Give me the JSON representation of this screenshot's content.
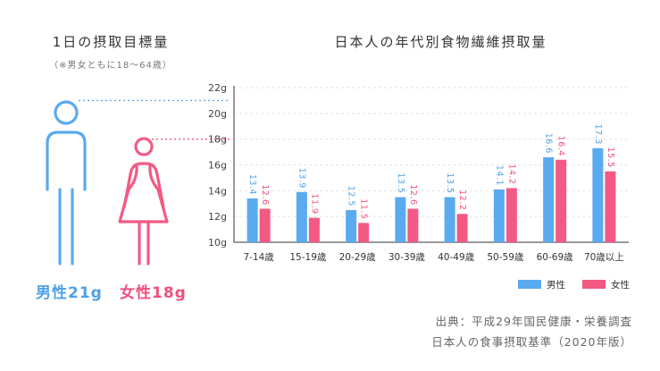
{
  "left_panel": {
    "title": "1日の摂取目標量",
    "subtitle": "（※男女ともに18〜64歳）",
    "male_label": "男性21g",
    "female_label": "女性18g"
  },
  "source": {
    "line1": "出典：平成29年国民健康・栄養調査",
    "line2": "日本人の食事摂取基準（2020年版）"
  },
  "colors": {
    "male": "#5aaaf0",
    "female": "#f25a84",
    "male_text": "#4ea1e6",
    "female_text": "#f0507e"
  },
  "chart_data": {
    "type": "bar",
    "title": "日本人の年代別食物繊維摂取量",
    "categories": [
      "7-14歳",
      "15-19歳",
      "20-29歳",
      "30-39歳",
      "40-49歳",
      "50-59歳",
      "60-69歳",
      "70歳以上"
    ],
    "series": [
      {
        "name": "男性",
        "values": [
          13.4,
          13.9,
          12.5,
          13.5,
          13.5,
          14.1,
          16.6,
          17.3
        ],
        "labels": [
          "13.4",
          "13.9",
          "12.5",
          "13.5",
          "13.5",
          "14.1",
          "16.6",
          "17.3"
        ]
      },
      {
        "name": "女性",
        "values": [
          12.6,
          11.9,
          11.5,
          12.6,
          12.2,
          14.2,
          16.4,
          15.5
        ],
        "labels": [
          "12.6",
          "11.9",
          "11.5",
          "12.6",
          "12.2",
          "14.2",
          "16.4",
          "15.5"
        ]
      }
    ],
    "ylim": [
      10,
      22
    ],
    "yticks": [
      "10g",
      "12g",
      "14g",
      "16g",
      "18g",
      "20g",
      "22g"
    ],
    "ytick_values": [
      10,
      12,
      14,
      16,
      18,
      20,
      22
    ],
    "xlabel": "",
    "ylabel": "",
    "grid": true,
    "legend": "bottom-right",
    "reference_lines": [
      {
        "name": "男性",
        "value": 21
      },
      {
        "name": "女性",
        "value": 18
      }
    ]
  }
}
